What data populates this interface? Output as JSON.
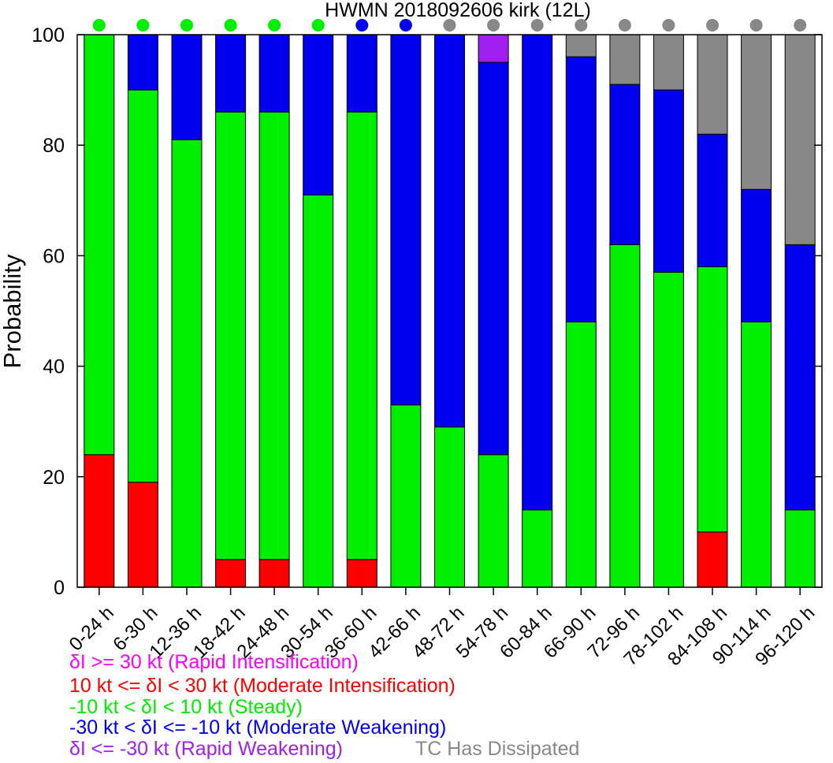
{
  "chart_data": {
    "type": "bar",
    "stacked": true,
    "title": "HWMN 2018092606 kirk (12L)",
    "ylabel": "Probability",
    "xlabel": "",
    "ylim": [
      0,
      100
    ],
    "yticks": [
      0,
      20,
      40,
      60,
      80,
      100
    ],
    "grid": false,
    "categories": [
      "0-24 h",
      "6-30 h",
      "12-36 h",
      "18-42 h",
      "24-48 h",
      "30-54 h",
      "36-60 h",
      "42-66 h",
      "48-72 h",
      "54-78 h",
      "60-84 h",
      "66-90 h",
      "72-96 h",
      "78-102 h",
      "84-108 h",
      "90-114 h",
      "96-120 h"
    ],
    "series": [
      {
        "name": "δI >= 30 kt (Rapid Intensification)",
        "color": "#ff00ff",
        "values": [
          0,
          0,
          0,
          0,
          0,
          0,
          0,
          0,
          0,
          0,
          0,
          0,
          0,
          0,
          0,
          0,
          0
        ]
      },
      {
        "name": "10 kt <= δI < 30 kt (Moderate Intensification)",
        "color": "#ff0000",
        "values": [
          24,
          19,
          0,
          5,
          5,
          0,
          5,
          0,
          0,
          0,
          0,
          0,
          0,
          0,
          10,
          0,
          0
        ]
      },
      {
        "name": "-10 kt < δI < 10 kt (Steady)",
        "color": "#00ee00",
        "values": [
          76,
          71,
          81,
          81,
          81,
          71,
          81,
          33,
          29,
          24,
          14,
          48,
          62,
          57,
          48,
          48,
          14
        ]
      },
      {
        "name": "-30 kt < δI <= -10 kt (Moderate Weakening)",
        "color": "#0000ee",
        "values": [
          0,
          10,
          19,
          14,
          14,
          29,
          14,
          67,
          71,
          71,
          86,
          48,
          29,
          33,
          24,
          24,
          48
        ]
      },
      {
        "name": "δI <= -30 kt (Rapid Weakening)",
        "color": "#a020f0",
        "values": [
          0,
          0,
          0,
          0,
          0,
          0,
          0,
          0,
          0,
          5,
          0,
          0,
          0,
          0,
          0,
          0,
          0
        ]
      },
      {
        "name": "TC Has Dissipated",
        "color": "#888888",
        "values": [
          0,
          0,
          0,
          0,
          0,
          0,
          0,
          0,
          0,
          0,
          0,
          4,
          9,
          10,
          18,
          28,
          38
        ]
      }
    ],
    "top_markers": [
      "#00ee00",
      "#00ee00",
      "#00ee00",
      "#00ee00",
      "#00ee00",
      "#00ee00",
      "#0000ee",
      "#0000ee",
      "#888888",
      "#888888",
      "#888888",
      "#888888",
      "#888888",
      "#888888",
      "#888888",
      "#888888",
      "#888888"
    ],
    "legend_position": "bottom-left"
  }
}
